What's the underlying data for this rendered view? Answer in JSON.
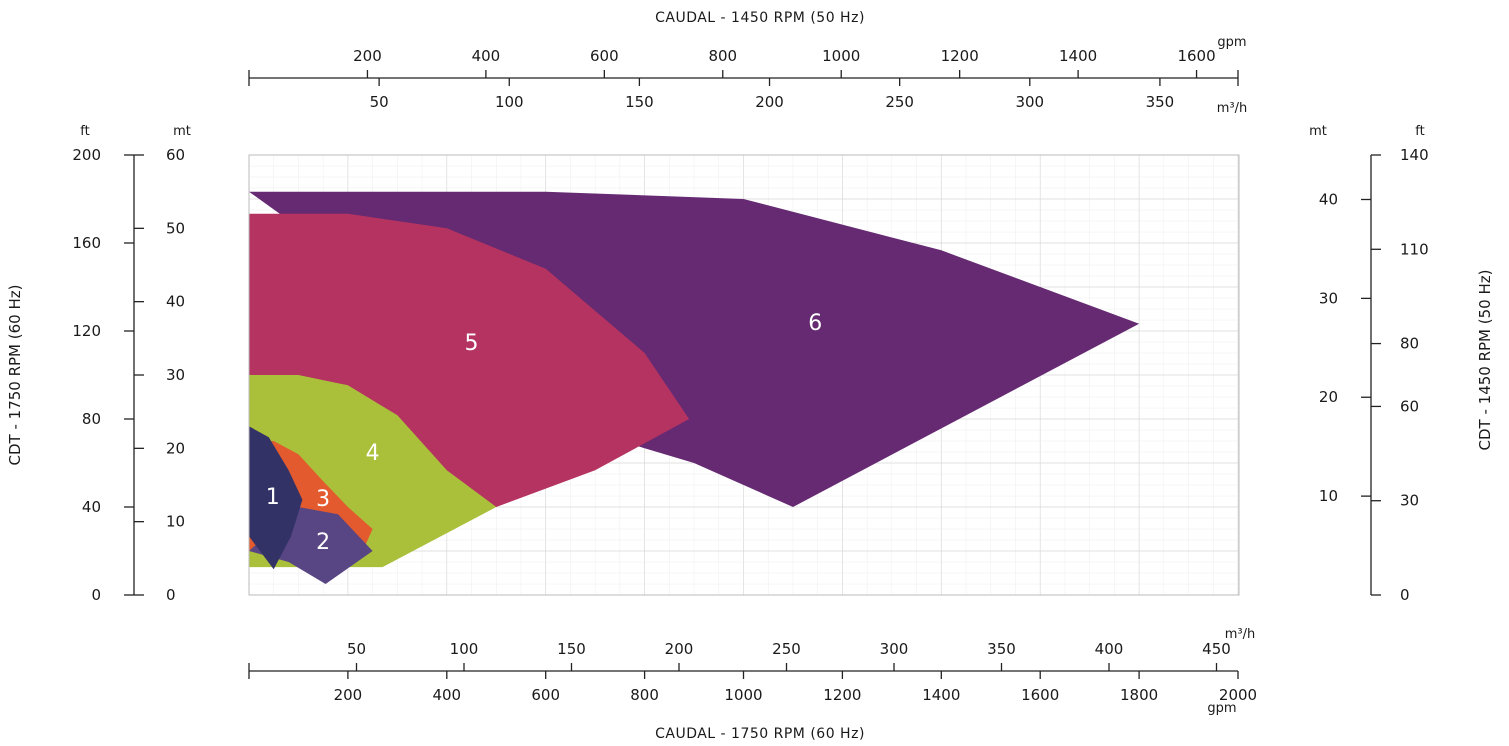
{
  "chart_data": {
    "type": "area",
    "title": "",
    "axes": {
      "top_title": "CAUDAL - 1450 RPM (50 Hz)",
      "bottom_title": "CAUDAL - 1750 RPM (60 Hz)",
      "left_title": "CDT - 1750 RPM (60 Hz)",
      "right_title": "CDT - 1450 RPM (50 Hz)",
      "top_gpm": {
        "unit": "gpm",
        "range": [
          0,
          1670
        ],
        "ticks": [
          200,
          400,
          600,
          800,
          1000,
          1200,
          1400,
          1600
        ]
      },
      "top_m3h": {
        "unit": "m³/h",
        "range": [
          0,
          380
        ],
        "ticks": [
          50,
          100,
          150,
          200,
          250,
          300,
          350
        ]
      },
      "bottom_m3h": {
        "unit": "m³/h",
        "range": [
          0,
          460
        ],
        "ticks": [
          50,
          100,
          150,
          200,
          250,
          300,
          350,
          400,
          450
        ]
      },
      "bottom_gpm": {
        "unit": "gpm",
        "range": [
          0,
          2000
        ],
        "ticks": [
          200,
          400,
          600,
          800,
          1000,
          1200,
          1400,
          1600,
          1800,
          2000
        ]
      },
      "left_ft": {
        "unit": "ft",
        "range": [
          0,
          200
        ],
        "ticks": [
          0,
          40,
          80,
          120,
          160,
          200
        ]
      },
      "left_mt": {
        "unit": "mt",
        "range": [
          0,
          60
        ],
        "ticks": [
          0,
          10,
          20,
          30,
          40,
          50,
          60
        ]
      },
      "right_mt": {
        "unit": "mt",
        "range": [
          0,
          44.5
        ],
        "ticks": [
          10,
          20,
          30,
          40
        ]
      },
      "right_ft": {
        "unit": "ft",
        "range": [
          0,
          140
        ],
        "ticks": [
          0,
          30,
          60,
          80,
          110,
          140
        ]
      }
    },
    "grid": true,
    "regions": [
      {
        "label": "6",
        "color": "#662a72",
        "label_at": [
          1145,
          124
        ],
        "boundary": [
          [
            0,
            55
          ],
          [
            600,
            55
          ],
          [
            1000,
            54
          ],
          [
            1400,
            47
          ],
          [
            1800,
            37
          ],
          [
            1100,
            12
          ],
          [
            900,
            18
          ],
          [
            800,
            20
          ],
          [
            660,
            23
          ]
        ]
      },
      {
        "label": "5",
        "color": "#b43360",
        "label_at": [
          450,
          115
        ],
        "boundary": [
          [
            0,
            52
          ],
          [
            200,
            52
          ],
          [
            400,
            50
          ],
          [
            600,
            44.5
          ],
          [
            800,
            33
          ],
          [
            890,
            24
          ],
          [
            700,
            17
          ],
          [
            500,
            12
          ],
          [
            0,
            12
          ]
        ]
      },
      {
        "label": "4",
        "color": "#aac03a",
        "label_at": [
          250,
          65
        ],
        "boundary": [
          [
            0,
            30
          ],
          [
            100,
            30
          ],
          [
            200,
            28.6
          ],
          [
            300,
            24.5
          ],
          [
            400,
            17
          ],
          [
            500,
            12
          ],
          [
            270,
            3.8
          ],
          [
            0,
            3.8
          ]
        ]
      },
      {
        "label": "3",
        "color": "#e35a2e",
        "label_at": [
          150,
          44
        ],
        "boundary": [
          [
            0,
            21
          ],
          [
            50,
            21
          ],
          [
            100,
            19.2
          ],
          [
            150,
            15.5
          ],
          [
            200,
            12
          ],
          [
            250,
            9
          ],
          [
            230,
            6
          ],
          [
            0,
            6
          ]
        ]
      },
      {
        "label": "2",
        "color": "#584583",
        "label_at": [
          150,
          24.5
        ],
        "boundary": [
          [
            0,
            6
          ],
          [
            100,
            12
          ],
          [
            180,
            11
          ],
          [
            250,
            6
          ],
          [
            155,
            1.5
          ],
          [
            80,
            4.5
          ],
          [
            0,
            6
          ]
        ]
      },
      {
        "label": "1",
        "color": "#323266",
        "label_at": [
          48,
          45
        ],
        "boundary": [
          [
            0,
            23
          ],
          [
            40,
            21.5
          ],
          [
            80,
            17
          ],
          [
            108,
            13
          ],
          [
            85,
            8
          ],
          [
            50,
            3.5
          ],
          [
            0,
            8
          ]
        ]
      }
    ]
  }
}
